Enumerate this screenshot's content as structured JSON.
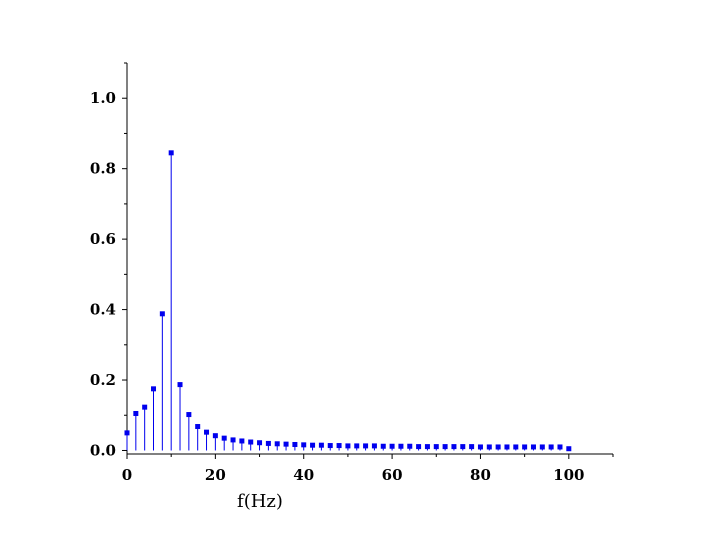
{
  "chart_data": {
    "type": "stem",
    "title": "",
    "xlabel": "f(Hz)",
    "ylabel": "",
    "xlim": [
      0,
      110
    ],
    "ylim": [
      -0.01,
      1.1
    ],
    "grid": false,
    "series_color": "#0000ee",
    "x_ticks": [
      0,
      20,
      40,
      60,
      80,
      100
    ],
    "x_tick_labels": [
      "0",
      "20",
      "40",
      "60",
      "80",
      "100"
    ],
    "y_ticks": [
      0.0,
      0.2,
      0.4,
      0.6,
      0.8,
      1.0
    ],
    "y_tick_labels": [
      "0.0",
      "0.2",
      "0.4",
      "0.6",
      "0.8",
      "1.0"
    ],
    "x": [
      0,
      2,
      4,
      6,
      8,
      10,
      12,
      14,
      16,
      18,
      20,
      22,
      24,
      26,
      28,
      30,
      32,
      34,
      36,
      38,
      40,
      42,
      44,
      46,
      48,
      50,
      52,
      54,
      56,
      58,
      60,
      62,
      64,
      66,
      68,
      70,
      72,
      74,
      76,
      78,
      80,
      82,
      84,
      86,
      88,
      90,
      92,
      94,
      96,
      98,
      100
    ],
    "values": [
      0.05,
      0.105,
      0.123,
      0.175,
      0.388,
      0.845,
      0.187,
      0.102,
      0.068,
      0.052,
      0.042,
      0.035,
      0.03,
      0.027,
      0.024,
      0.022,
      0.02,
      0.019,
      0.018,
      0.017,
      0.016,
      0.015,
      0.015,
      0.014,
      0.014,
      0.013,
      0.013,
      0.013,
      0.013,
      0.012,
      0.012,
      0.012,
      0.012,
      0.011,
      0.011,
      0.011,
      0.011,
      0.011,
      0.011,
      0.011,
      0.01,
      0.01,
      0.01,
      0.01,
      0.01,
      0.01,
      0.01,
      0.01,
      0.01,
      0.01,
      0.005
    ]
  }
}
